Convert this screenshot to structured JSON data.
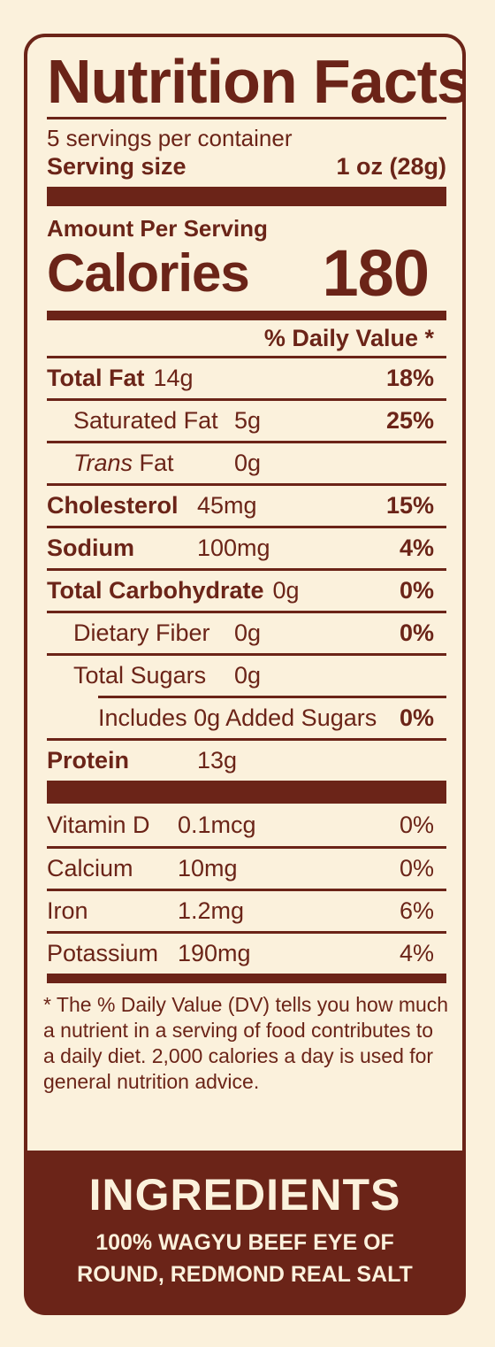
{
  "label": {
    "title": "Nutrition Facts",
    "servings_per_container": "5 servings per container",
    "serving_size_label": "Serving size",
    "serving_size_value": "1 oz (28g)",
    "amount_per_serving": "Amount Per Serving",
    "calories_label": "Calories",
    "calories_value": "180",
    "daily_value_header": "% Daily Value *"
  },
  "nutrients": [
    {
      "name": "Total Fat",
      "amount": "14g",
      "dv": "18%"
    },
    {
      "name": "Saturated Fat",
      "amount": "5g",
      "dv": "25%"
    },
    {
      "name_italic": "Trans",
      "name": "Fat",
      "amount": "0g",
      "dv": ""
    },
    {
      "name": "Cholesterol",
      "amount": "45mg",
      "dv": "15%"
    },
    {
      "name": "Sodium",
      "amount": "100mg",
      "dv": "4%"
    },
    {
      "name": "Total Carbohydrate",
      "amount": "0g",
      "dv": "0%"
    },
    {
      "name": "Dietary Fiber",
      "amount": "0g",
      "dv": "0%"
    },
    {
      "name": "Total Sugars",
      "amount": "0g",
      "dv": ""
    },
    {
      "name": "Includes 0g Added Sugars",
      "amount": "",
      "dv": "0%"
    },
    {
      "name": "Protein",
      "amount": "13g",
      "dv": ""
    }
  ],
  "vitamins": [
    {
      "name": "Vitamin D",
      "amount": "0.1mcg",
      "dv": "0%"
    },
    {
      "name": "Calcium",
      "amount": "10mg",
      "dv": "0%"
    },
    {
      "name": "Iron",
      "amount": "1.2mg",
      "dv": "6%"
    },
    {
      "name": "Potassium",
      "amount": "190mg",
      "dv": "4%"
    }
  ],
  "footnote": "* The % Daily Value (DV) tells you how much a nutrient in a serving of food contributes to a daily diet. 2,000 calories a day is used for general nutrition advice.",
  "ingredients": {
    "title": "INGREDIENTS",
    "line1": "100% WAGYU BEEF EYE OF",
    "line2": "ROUND, REDMOND REAL SALT"
  },
  "colors": {
    "brown": "#6b2418",
    "cream": "#fbf1dc"
  }
}
